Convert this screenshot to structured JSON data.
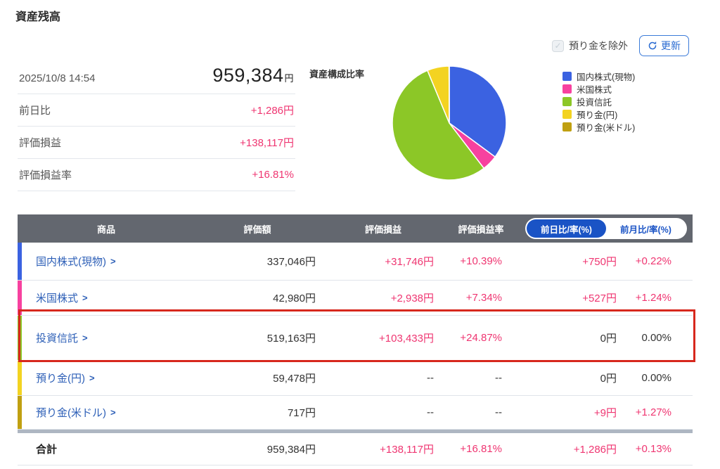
{
  "page": {
    "title": "資産残高"
  },
  "controls": {
    "exclude_checkbox_label": "預り金を除外",
    "refresh_button_label": "更新"
  },
  "summary": {
    "timestamp": "2025/10/8 14:54",
    "total_value": "959,384",
    "total_unit": "円",
    "rows": [
      {
        "label": "前日比",
        "value": "+1,286円"
      },
      {
        "label": "評価損益",
        "value": "+138,117円"
      },
      {
        "label": "評価損益率",
        "value": "+16.81%"
      }
    ]
  },
  "chart_data": {
    "type": "pie",
    "title": "資産構成比率",
    "labels": [
      "国内株式(現物)",
      "米国株式",
      "投資信託",
      "預り金(円)",
      "預り金(米ドル)"
    ],
    "values": [
      337046,
      42980,
      519163,
      59478,
      717
    ],
    "percentages": [
      35.1,
      4.5,
      54.1,
      6.2,
      0.1
    ],
    "colors": [
      "#3b62e1",
      "#f7419f",
      "#8cc727",
      "#f3d321",
      "#c0a011"
    ],
    "legend_position": "right",
    "start_angle": "top",
    "direction": "clockwise"
  },
  "table": {
    "headers": {
      "product": "商品",
      "amount": "評価額",
      "pl": "評価損益",
      "pl_rate": "評価損益率"
    },
    "toggle": {
      "daily_label": "前日比/率(%)",
      "monthly_label": "前月比/率(%)",
      "selected": "前日比/率(%)"
    },
    "rows": [
      {
        "name": "国内株式(現物)",
        "color": "#3b62e1",
        "amount": "337,046円",
        "pl": "+31,746円",
        "pl_rate": "+10.39%",
        "daily": "+750円",
        "daily_rate": "+0.22%"
      },
      {
        "name": "米国株式",
        "color": "#f7419f",
        "amount": "42,980円",
        "pl": "+2,938円",
        "pl_rate": "+7.34%",
        "daily": "+527円",
        "daily_rate": "+1.24%"
      },
      {
        "name": "投資信託",
        "color": "#8cc727",
        "amount": "519,163円",
        "pl": "+103,433円",
        "pl_rate": "+24.87%",
        "daily": "0円",
        "daily_rate": "0.00%",
        "highlighted": true
      },
      {
        "name": "預り金(円)",
        "color": "#f3d321",
        "amount": "59,478円",
        "pl": "--",
        "pl_rate": "--",
        "daily": "0円",
        "daily_rate": "0.00%"
      },
      {
        "name": "預り金(米ドル)",
        "color": "#c0a011",
        "amount": "717円",
        "pl": "--",
        "pl_rate": "--",
        "daily": "+9円",
        "daily_rate": "+1.27%"
      }
    ],
    "total": {
      "name": "合計",
      "amount": "959,384円",
      "pl": "+138,117円",
      "pl_rate": "+16.81%",
      "daily": "+1,286円",
      "daily_rate": "+0.13%"
    },
    "chevron": "＞"
  }
}
